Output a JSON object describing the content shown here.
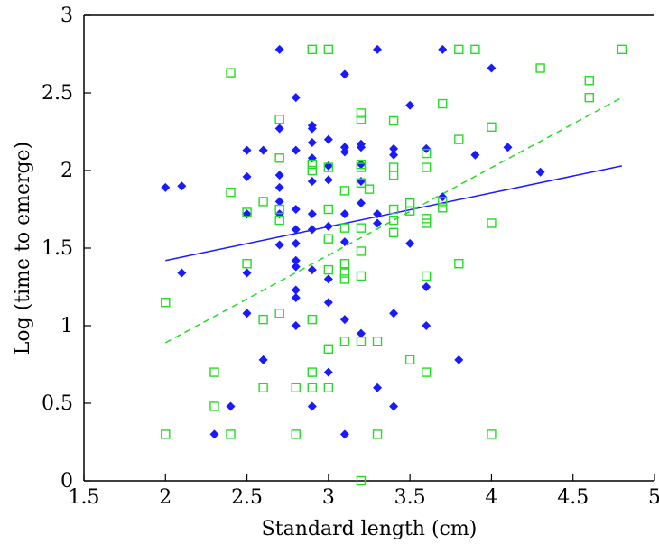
{
  "chart_data": {
    "type": "scatter",
    "title": "",
    "xlabel": "Standard length (cm)",
    "ylabel": "Log (time to emerge)",
    "xlim": [
      1.5,
      5
    ],
    "ylim": [
      0,
      3
    ],
    "xticks": [
      "1.5",
      "2",
      "2.5",
      "3",
      "3.5",
      "4",
      "4.5",
      "5"
    ],
    "yticks": [
      "0",
      "0.5",
      "1",
      "1.5",
      "2",
      "2.5",
      "3"
    ],
    "grid": false,
    "legend": "none",
    "series": [
      {
        "marker": "filled-diamond",
        "color": "#1a1aff",
        "points": [
          [
            2.0,
            1.89
          ],
          [
            2.1,
            1.9
          ],
          [
            2.1,
            1.34
          ],
          [
            2.3,
            0.3
          ],
          [
            2.4,
            0.48
          ],
          [
            2.5,
            2.13
          ],
          [
            2.5,
            1.96
          ],
          [
            2.5,
            1.72
          ],
          [
            2.5,
            1.34
          ],
          [
            2.5,
            1.08
          ],
          [
            2.6,
            2.13
          ],
          [
            2.6,
            0.78
          ],
          [
            2.7,
            2.78
          ],
          [
            2.7,
            2.27
          ],
          [
            2.7,
            1.97
          ],
          [
            2.7,
            1.89
          ],
          [
            2.7,
            1.8
          ],
          [
            2.7,
            1.72
          ],
          [
            2.7,
            1.52
          ],
          [
            2.8,
            2.47
          ],
          [
            2.8,
            2.13
          ],
          [
            2.8,
            1.75
          ],
          [
            2.8,
            1.62
          ],
          [
            2.8,
            1.53
          ],
          [
            2.8,
            1.42
          ],
          [
            2.8,
            1.38
          ],
          [
            2.8,
            1.23
          ],
          [
            2.8,
            1.18
          ],
          [
            2.8,
            1.0
          ],
          [
            2.9,
            2.29
          ],
          [
            2.9,
            2.27
          ],
          [
            2.9,
            2.18
          ],
          [
            2.9,
            2.08
          ],
          [
            2.9,
            1.93
          ],
          [
            2.9,
            1.72
          ],
          [
            2.9,
            1.62
          ],
          [
            2.9,
            1.36
          ],
          [
            2.9,
            0.48
          ],
          [
            3.0,
            2.2
          ],
          [
            3.0,
            2.03
          ],
          [
            3.0,
            1.94
          ],
          [
            3.0,
            1.64
          ],
          [
            3.0,
            1.3
          ],
          [
            3.0,
            1.15
          ],
          [
            3.0,
            0.7
          ],
          [
            3.1,
            2.62
          ],
          [
            3.1,
            2.15
          ],
          [
            3.1,
            2.12
          ],
          [
            3.1,
            1.72
          ],
          [
            3.1,
            1.54
          ],
          [
            3.1,
            1.04
          ],
          [
            3.1,
            0.3
          ],
          [
            3.2,
            2.17
          ],
          [
            3.2,
            2.15
          ],
          [
            3.2,
            2.04
          ],
          [
            3.2,
            1.93
          ],
          [
            3.2,
            1.79
          ],
          [
            3.2,
            0.95
          ],
          [
            3.3,
            2.78
          ],
          [
            3.3,
            1.72
          ],
          [
            3.3,
            1.66
          ],
          [
            3.3,
            0.6
          ],
          [
            3.4,
            2.14
          ],
          [
            3.4,
            2.1
          ],
          [
            3.4,
            1.08
          ],
          [
            3.4,
            0.48
          ],
          [
            3.5,
            2.42
          ],
          [
            3.5,
            1.53
          ],
          [
            3.6,
            2.14
          ],
          [
            3.6,
            1.25
          ],
          [
            3.6,
            1.0
          ],
          [
            3.7,
            2.78
          ],
          [
            3.7,
            1.83
          ],
          [
            3.8,
            0.78
          ],
          [
            3.9,
            2.1
          ],
          [
            4.0,
            2.66
          ],
          [
            4.1,
            2.15
          ],
          [
            4.3,
            1.99
          ]
        ],
        "fit": {
          "x": [
            2.0,
            4.8
          ],
          "y": [
            1.42,
            2.03
          ],
          "style": "solid"
        }
      },
      {
        "marker": "open-square",
        "color": "#22dd22",
        "points": [
          [
            2.0,
            1.15
          ],
          [
            2.0,
            0.3
          ],
          [
            2.3,
            0.7
          ],
          [
            2.3,
            0.48
          ],
          [
            2.4,
            2.63
          ],
          [
            2.4,
            1.86
          ],
          [
            2.4,
            0.3
          ],
          [
            2.5,
            1.73
          ],
          [
            2.5,
            1.4
          ],
          [
            2.6,
            1.8
          ],
          [
            2.6,
            1.04
          ],
          [
            2.6,
            0.6
          ],
          [
            2.7,
            2.33
          ],
          [
            2.7,
            2.08
          ],
          [
            2.7,
            1.75
          ],
          [
            2.7,
            1.68
          ],
          [
            2.7,
            1.08
          ],
          [
            2.8,
            0.6
          ],
          [
            2.8,
            0.3
          ],
          [
            2.9,
            2.78
          ],
          [
            2.9,
            2.04
          ],
          [
            2.9,
            2.0
          ],
          [
            2.9,
            1.04
          ],
          [
            2.9,
            0.7
          ],
          [
            2.9,
            0.6
          ],
          [
            3.0,
            2.78
          ],
          [
            3.0,
            2.02
          ],
          [
            3.0,
            1.75
          ],
          [
            3.0,
            1.56
          ],
          [
            3.0,
            1.36
          ],
          [
            3.0,
            0.85
          ],
          [
            3.0,
            0.6
          ],
          [
            3.1,
            1.87
          ],
          [
            3.1,
            1.63
          ],
          [
            3.1,
            1.4
          ],
          [
            3.1,
            1.34
          ],
          [
            3.1,
            1.3
          ],
          [
            3.1,
            0.9
          ],
          [
            3.2,
            2.37
          ],
          [
            3.2,
            2.33
          ],
          [
            3.2,
            2.04
          ],
          [
            3.2,
            2.02
          ],
          [
            3.2,
            1.92
          ],
          [
            3.2,
            1.63
          ],
          [
            3.2,
            1.48
          ],
          [
            3.2,
            1.32
          ],
          [
            3.2,
            0.9
          ],
          [
            3.2,
            0.0
          ],
          [
            3.25,
            1.88
          ],
          [
            3.3,
            0.9
          ],
          [
            3.3,
            0.3
          ],
          [
            3.4,
            2.32
          ],
          [
            3.4,
            2.02
          ],
          [
            3.4,
            1.97
          ],
          [
            3.4,
            1.75
          ],
          [
            3.4,
            1.68
          ],
          [
            3.4,
            1.6
          ],
          [
            3.5,
            1.79
          ],
          [
            3.5,
            1.74
          ],
          [
            3.5,
            0.78
          ],
          [
            3.6,
            2.11
          ],
          [
            3.6,
            2.02
          ],
          [
            3.6,
            1.69
          ],
          [
            3.6,
            1.66
          ],
          [
            3.6,
            1.32
          ],
          [
            3.6,
            0.7
          ],
          [
            3.7,
            2.43
          ],
          [
            3.7,
            1.8
          ],
          [
            3.7,
            1.76
          ],
          [
            3.8,
            2.78
          ],
          [
            3.8,
            2.2
          ],
          [
            3.8,
            1.4
          ],
          [
            3.9,
            2.78
          ],
          [
            4.0,
            2.28
          ],
          [
            4.0,
            1.66
          ],
          [
            4.0,
            0.3
          ],
          [
            4.3,
            2.66
          ],
          [
            4.6,
            2.58
          ],
          [
            4.6,
            2.47
          ],
          [
            4.8,
            2.78
          ]
        ],
        "fit": {
          "x": [
            2.0,
            4.8
          ],
          "y": [
            0.89,
            2.47
          ],
          "style": "dashed"
        }
      }
    ]
  }
}
